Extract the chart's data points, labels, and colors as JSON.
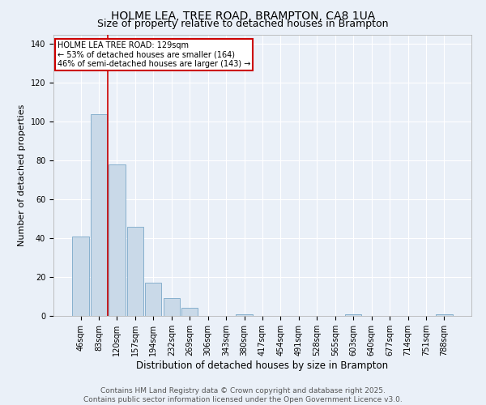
{
  "title1": "HOLME LEA, TREE ROAD, BRAMPTON, CA8 1UA",
  "title2": "Size of property relative to detached houses in Brampton",
  "xlabel": "Distribution of detached houses by size in Brampton",
  "ylabel": "Number of detached properties",
  "categories": [
    "46sqm",
    "83sqm",
    "120sqm",
    "157sqm",
    "194sqm",
    "232sqm",
    "269sqm",
    "306sqm",
    "343sqm",
    "380sqm",
    "417sqm",
    "454sqm",
    "491sqm",
    "528sqm",
    "565sqm",
    "603sqm",
    "640sqm",
    "677sqm",
    "714sqm",
    "751sqm",
    "788sqm"
  ],
  "values": [
    41,
    104,
    78,
    46,
    17,
    9,
    4,
    0,
    0,
    1,
    0,
    0,
    0,
    0,
    0,
    1,
    0,
    0,
    0,
    0,
    1
  ],
  "bar_color": "#c9d9e8",
  "bar_edge_color": "#7aa8c8",
  "vline_color": "#cc0000",
  "annotation_box_text": "HOLME LEA TREE ROAD: 129sqm\n← 53% of detached houses are smaller (164)\n46% of semi-detached houses are larger (143) →",
  "box_color": "#cc0000",
  "ylim": [
    0,
    145
  ],
  "yticks": [
    0,
    20,
    40,
    60,
    80,
    100,
    120,
    140
  ],
  "bg_color": "#eaf0f8",
  "plot_bg_color": "#eaf0f8",
  "footer_text": "Contains HM Land Registry data © Crown copyright and database right 2025.\nContains public sector information licensed under the Open Government Licence v3.0.",
  "title1_fontsize": 10,
  "title2_fontsize": 9,
  "xlabel_fontsize": 8.5,
  "ylabel_fontsize": 8,
  "tick_fontsize": 7,
  "footer_fontsize": 6.5,
  "ann_fontsize": 7
}
